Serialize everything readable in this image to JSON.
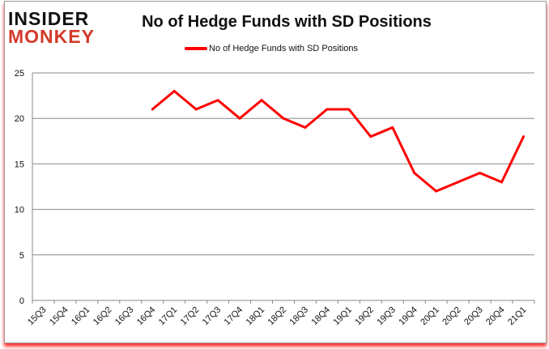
{
  "logo": {
    "line1": "INSIDER",
    "line2": "MONKEY"
  },
  "chart_data": {
    "type": "line",
    "title": "No of Hedge Funds with SD Positions",
    "categories": [
      "15Q3",
      "15Q4",
      "16Q1",
      "16Q2",
      "16Q3",
      "16Q4",
      "17Q1",
      "17Q2",
      "17Q3",
      "17Q4",
      "18Q1",
      "18Q2",
      "18Q3",
      "18Q4",
      "19Q1",
      "19Q2",
      "19Q3",
      "19Q4",
      "20Q1",
      "20Q2",
      "20Q3",
      "20Q4",
      "21Q1"
    ],
    "series": [
      {
        "name": "No of Hedge Funds with SD Positions",
        "color": "#ff0000",
        "values": [
          null,
          null,
          null,
          null,
          null,
          21,
          23,
          21,
          22,
          20,
          22,
          20,
          19,
          21,
          21,
          18,
          19,
          14,
          12,
          13,
          14,
          13,
          18
        ]
      }
    ],
    "ylim": [
      0,
      25
    ],
    "yticks": [
      0,
      5,
      10,
      15,
      20,
      25
    ],
    "grid": true,
    "legend": "top"
  }
}
